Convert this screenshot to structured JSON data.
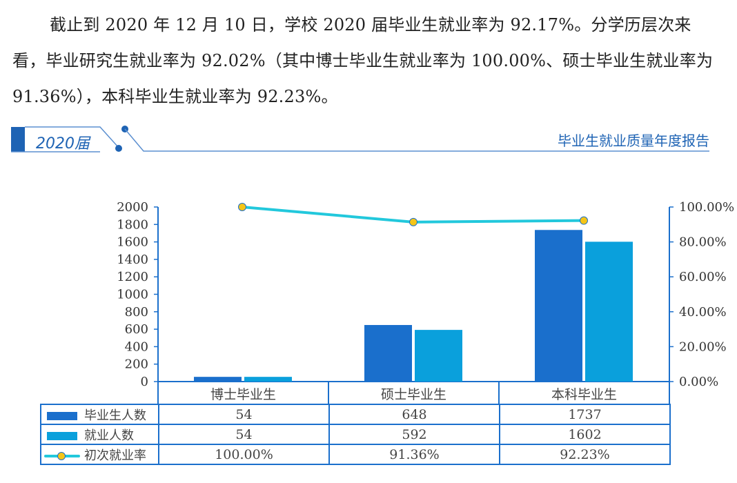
{
  "paragraph": "截止到 2020 年 12 月 10 日，学校 2020 届毕业生就业率为 92.17%。分学历层次来看，毕业研究生就业率为 92.02%（其中博士毕业生就业率为 100.00%、硕士毕业生就业率为 91.36%），本科毕业生就业率为 92.23%。",
  "banner": {
    "title": "2020届",
    "right": "毕业生就业质量年度报告",
    "color": "#1e63b4"
  },
  "chart_data": {
    "type": "bar",
    "categories": [
      "博士毕业生",
      "硕士毕业生",
      "本科毕业生"
    ],
    "series": [
      {
        "name": "毕业生人数",
        "type": "bar",
        "axis": "left",
        "color": "#1a6fcc",
        "values": [
          54,
          648,
          1737
        ],
        "labels": [
          "54",
          "648",
          "1737"
        ]
      },
      {
        "name": "就业人数",
        "type": "bar",
        "axis": "left",
        "color": "#0aa0dc",
        "values": [
          54,
          592,
          1602
        ],
        "labels": [
          "54",
          "592",
          "1602"
        ]
      },
      {
        "name": "初次就业率",
        "type": "line",
        "axis": "right",
        "color": "#22c8dc",
        "marker_color": "#f5c518",
        "values": [
          100.0,
          91.36,
          92.23
        ],
        "labels": [
          "100.00%",
          "91.36%",
          "92.23%"
        ]
      }
    ],
    "ylim": [
      0,
      2000
    ],
    "yticks": [
      "0",
      "200",
      "400",
      "600",
      "800",
      "1000",
      "1200",
      "1400",
      "1600",
      "1800",
      "2000"
    ],
    "y2lim": [
      0,
      100
    ],
    "y2ticks": [
      "0.00%",
      "20.00%",
      "40.00%",
      "60.00%",
      "80.00%",
      "100.00%"
    ],
    "legend": "data-table below",
    "grid": false
  }
}
